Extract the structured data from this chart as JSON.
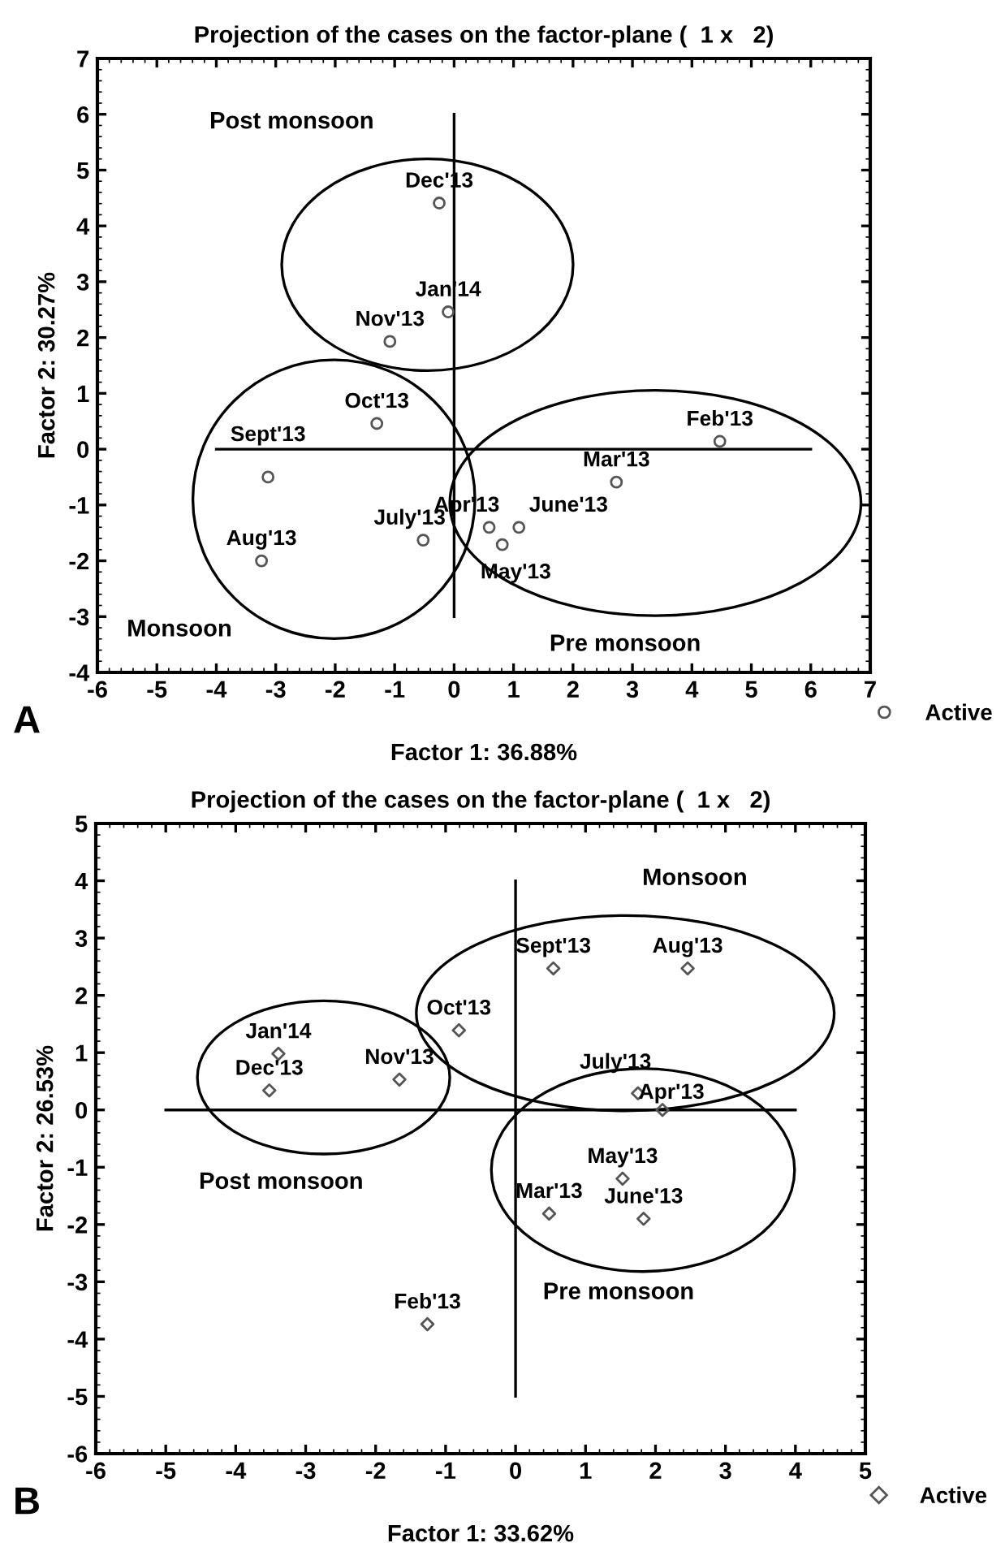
{
  "chart_data": [
    {
      "type": "scatter",
      "title": "Projection of the cases on the factor-plane (  1 x   2)",
      "xlabel": "Factor 1: 36.88%",
      "ylabel": "Factor 2: 30.27%",
      "xlim": [
        -6,
        7
      ],
      "ylim": [
        -4,
        7
      ],
      "xticks": [
        -6,
        -5,
        -4,
        -3,
        -2,
        -1,
        0,
        1,
        2,
        3,
        4,
        5,
        6,
        7
      ],
      "yticks": [
        -4,
        -3,
        -2,
        -1,
        0,
        1,
        2,
        3,
        4,
        5,
        6,
        7
      ],
      "grid": false,
      "legend": "bottom right",
      "series": [
        {
          "name": "Active",
          "color": "#555555",
          "marker": "circle",
          "x": [
            -0.25,
            -0.1,
            -1.08,
            -1.3,
            -3.13,
            -3.24,
            -0.52,
            0.59,
            0.81,
            1.09,
            2.73,
            4.47
          ],
          "values": [
            4.41,
            2.46,
            1.93,
            0.46,
            -0.5,
            -2.0,
            -1.63,
            -1.4,
            -1.71,
            -1.4,
            -0.59,
            0.14
          ]
        },
        {
          "type": "line",
          "color": "#000000",
          "x": [
            -4,
            6
          ],
          "values": [
            0,
            0
          ]
        },
        {
          "type": "line",
          "color": "#000000",
          "x": [
            0,
            0
          ],
          "values": [
            -3,
            6
          ]
        }
      ],
      "annotations": [
        "A",
        {
          "text": "Dec'13",
          "x": -0.25,
          "y": 4.41
        },
        {
          "text": "Jan'14",
          "x": -0.1,
          "y": 2.46
        },
        {
          "text": "Nov'13",
          "x": -1.08,
          "y": 1.93
        },
        {
          "text": "Oct'13",
          "x": -1.3,
          "y": 0.46
        },
        {
          "text": "Sept'13",
          "x": -3.13,
          "y": -0.5
        },
        {
          "text": "Aug'13",
          "x": -3.24,
          "y": -2.0
        },
        {
          "text": "July'13",
          "x": -0.52,
          "y": -1.63
        },
        {
          "text": "Apr'13",
          "x": 0.59,
          "y": -1.4
        },
        {
          "text": "May'13",
          "x": 0.81,
          "y": -1.71
        },
        {
          "text": "June'13",
          "x": 1.09,
          "y": -1.4
        },
        {
          "text": "Mar'13",
          "x": 2.73,
          "y": -0.59
        },
        {
          "text": "Feb'13",
          "x": 4.47,
          "y": 0.14
        },
        "Post monsoon",
        "Monsoon",
        "Pre monsoon"
      ]
    },
    {
      "type": "scatter",
      "title": "Projection of the cases on the factor-plane (  1 x   2)",
      "xlabel": "Factor 1: 33.62%",
      "ylabel": "Factor 2: 26.53%",
      "xlim": [
        -6,
        5
      ],
      "ylim": [
        -6,
        5
      ],
      "xticks": [
        -6,
        -5,
        -4,
        -3,
        -2,
        -1,
        0,
        1,
        2,
        3,
        4,
        5
      ],
      "yticks": [
        -6,
        -5,
        -4,
        -3,
        -2,
        -1,
        0,
        1,
        2,
        3,
        4,
        5
      ],
      "grid": false,
      "legend": "bottom right",
      "series": [
        {
          "name": "Active",
          "color": "#555555",
          "marker": "diamond",
          "x": [
            0.54,
            2.46,
            -0.81,
            -3.39,
            -3.52,
            -1.66,
            1.75,
            2.1,
            1.53,
            0.48,
            1.83,
            -1.26
          ],
          "values": [
            2.47,
            2.47,
            1.39,
            0.98,
            0.34,
            0.53,
            0.29,
            0.0,
            -1.2,
            -1.81,
            -1.9,
            -3.74
          ]
        },
        {
          "type": "line",
          "color": "#000000",
          "x": [
            -5,
            4
          ],
          "values": [
            0,
            0
          ]
        },
        {
          "type": "line",
          "color": "#000000",
          "x": [
            0,
            0
          ],
          "values": [
            -5,
            4
          ]
        }
      ],
      "annotations": [
        "B",
        {
          "text": "Sept'13",
          "x": 0.54,
          "y": 2.47
        },
        {
          "text": "Aug'13",
          "x": 2.46,
          "y": 2.47
        },
        {
          "text": "Oct'13",
          "x": -0.81,
          "y": 1.39
        },
        {
          "text": "Jan'14",
          "x": -3.39,
          "y": 0.98
        },
        {
          "text": "Dec'13",
          "x": -3.52,
          "y": 0.34
        },
        {
          "text": "Nov'13",
          "x": -1.66,
          "y": 0.53
        },
        {
          "text": "July'13",
          "x": 1.75,
          "y": 0.29
        },
        {
          "text": "Apr'13",
          "x": 2.1,
          "y": 0.0
        },
        {
          "text": "May'13",
          "x": 1.53,
          "y": -1.2
        },
        {
          "text": "Mar'13",
          "x": 0.48,
          "y": -1.81
        },
        {
          "text": "June'13",
          "x": 1.83,
          "y": -1.9
        },
        {
          "text": "Feb'13",
          "x": -1.26,
          "y": -3.74
        },
        "Monsoon",
        "Post monsoon",
        "Pre monsoon"
      ]
    }
  ]
}
